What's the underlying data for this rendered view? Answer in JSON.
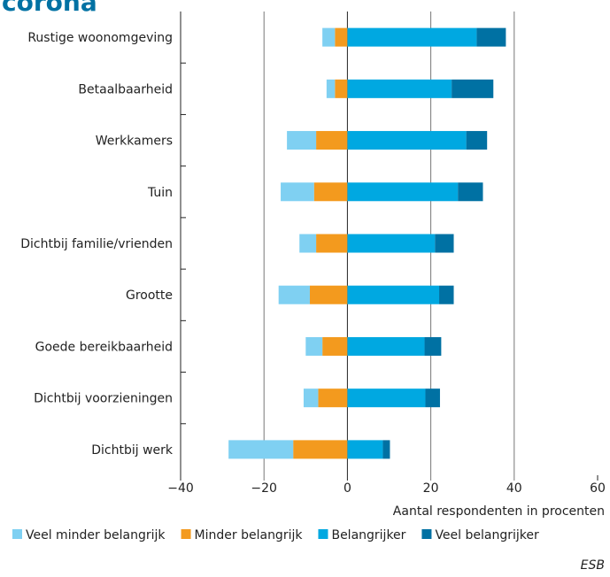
{
  "chart_data": {
    "type": "diverging_stacked_bar",
    "title": "corona",
    "categories": [
      "Rustige woonomgeving",
      "Betaalbaarheid",
      "Werkkamers",
      "Tuin",
      "Dichtbij familie/vrienden",
      "Grootte",
      "Goede bereikbaarheid",
      "Dichtbij voorzieningen",
      "Dichtbij werk"
    ],
    "series": [
      {
        "name": "Veel minder belangrijk",
        "color": "#7fd0f2",
        "values": [
          -3,
          -2,
          -7,
          -8,
          -4,
          -7.5,
          -4,
          -3.5,
          -15.5
        ]
      },
      {
        "name": "Minder belangrijk",
        "color": "#f39a1e",
        "values": [
          -3,
          -3,
          -7.5,
          -8,
          -7.5,
          -9,
          -6,
          -7,
          -13
        ]
      },
      {
        "name": "Belangrijker",
        "color": "#00a8e1",
        "values": [
          31,
          25,
          28.5,
          26.5,
          21,
          22,
          18.5,
          18.7,
          8.5
        ]
      },
      {
        "name": "Veel belangrijker",
        "color": "#0071a3",
        "values": [
          7,
          10,
          5,
          6,
          4.5,
          3.5,
          4,
          3.5,
          1.7
        ]
      }
    ],
    "xlim": [
      -40,
      60
    ],
    "xticks": [
      {
        "value": -40,
        "label": "−40"
      },
      {
        "value": -20,
        "label": "−20"
      },
      0,
      20,
      40,
      60
    ],
    "xlabel": "Aantal respondenten in procenten",
    "grid": true,
    "legend": "bottom",
    "source": "ESB"
  }
}
